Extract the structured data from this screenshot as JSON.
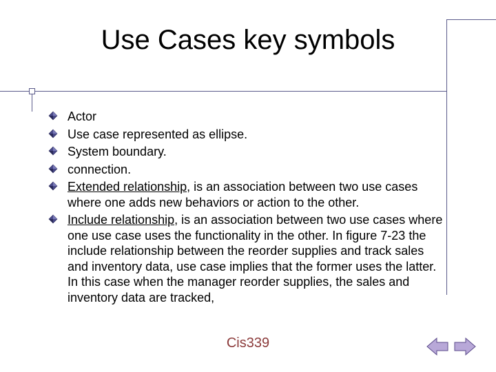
{
  "title": "Use Cases key symbols",
  "bullets": [
    {
      "text": "Actor"
    },
    {
      "text": "Use case represented as ellipse."
    },
    {
      "text": "System boundary."
    },
    {
      "text": " connection."
    },
    {
      "prefix": "Extended relationship",
      "rest": ", is an association between two use cases where one adds new behaviors or action to the other."
    },
    {
      "prefix": "Include relationship",
      "rest": ", is an association between two use cases where one use case uses the functionality in the other. In figure 7-23 the include relationship between the reorder supplies and track sales and inventory data, use case implies that the former uses the latter. In this case when the manager reorder supplies, the sales and inventory data are tracked,"
    }
  ],
  "footer": "Cis339",
  "colors": {
    "bullet_fill": "#4a4a8a",
    "bullet_stroke": "#2a2a5a",
    "arrow_fill": "#b8a8d8",
    "arrow_stroke": "#5a4a8a",
    "title_color": "#000000",
    "footer_color": "#8b3a3a"
  }
}
